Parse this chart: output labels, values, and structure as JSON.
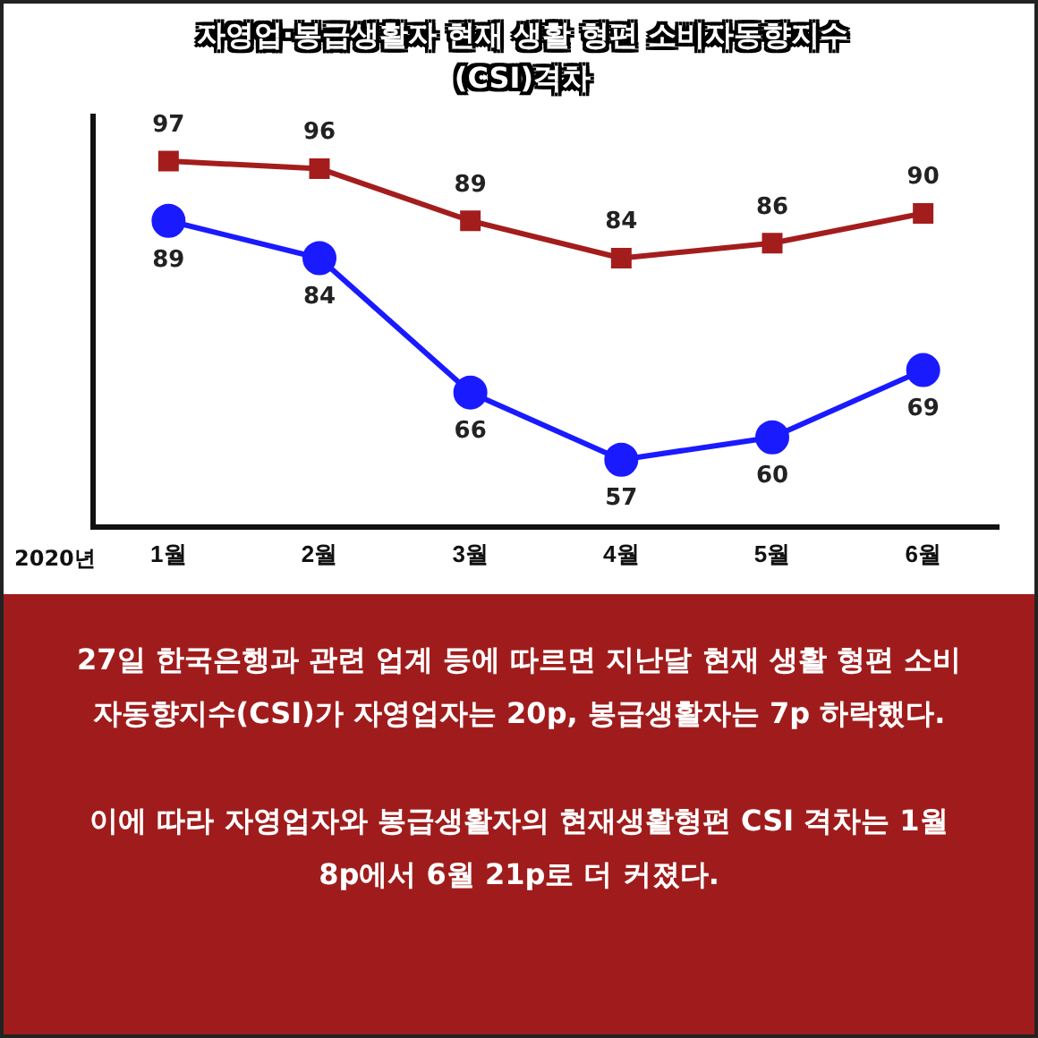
{
  "chart_data": {
    "type": "line",
    "title": "자영업·봉급생활자 현재 생활 형편 소비자동향지수(CSI)격차",
    "categories": [
      "1월",
      "2월",
      "3월",
      "4월",
      "5월",
      "6월"
    ],
    "series": [
      {
        "color": "#a41d1d",
        "marker": "square",
        "values": [
          97,
          96,
          89,
          84,
          86,
          90
        ]
      },
      {
        "color": "#1a1aff",
        "marker": "circle",
        "values": [
          89,
          84,
          66,
          57,
          60,
          69
        ]
      }
    ],
    "ylim": [
      48,
      103
    ],
    "tick_labels": "x",
    "data_labels": true,
    "grid": false,
    "legend": false,
    "annotations": [
      "2020년",
      "27일 한국은행과 관련 업계 등에 따르면 지난달 현재 생활 형편 소비자동향지수(CSI)가 자영업자는 20p, 봉급생활자는 7p 하락했다.",
      "이에 따라 자영업자와 봉급생활자의 현재생활형편 CSI 격차는 1월 8p에서 6월 21p로 더 커졌다."
    ]
  }
}
